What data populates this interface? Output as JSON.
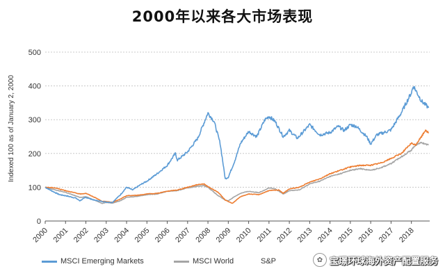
{
  "chart_data": {
    "type": "line",
    "title": "2000年以来各大市场表现",
    "ylabel": "Indexed 100 as of January 2, 2000",
    "ylim": [
      0,
      500
    ],
    "yticks": [
      0,
      100,
      200,
      300,
      400,
      500
    ],
    "xlim": [
      2000,
      2018.9
    ],
    "xticks": [
      "2000",
      "2001",
      "2002",
      "2003",
      "2004",
      "2005",
      "2006",
      "2007",
      "2008",
      "2009",
      "2010",
      "2011",
      "2012",
      "2013",
      "2014",
      "2015",
      "2016",
      "2017",
      "2018"
    ],
    "grid": "horizontal dashed",
    "legend": "bottom",
    "series": [
      {
        "name": "MSCI Emerging Markets",
        "color": "#5b9bd5",
        "x": [
          2000.0,
          2000.3,
          2000.7,
          2001.0,
          2001.5,
          2001.7,
          2002.0,
          2002.4,
          2002.8,
          2003.0,
          2003.3,
          2003.7,
          2004.0,
          2004.3,
          2004.7,
          2005.0,
          2005.5,
          2006.0,
          2006.4,
          2006.5,
          2007.0,
          2007.5,
          2007.8,
          2008.0,
          2008.3,
          2008.6,
          2008.85,
          2009.0,
          2009.3,
          2009.6,
          2010.0,
          2010.4,
          2010.8,
          2011.0,
          2011.3,
          2011.7,
          2012.0,
          2012.4,
          2012.7,
          2013.0,
          2013.5,
          2014.0,
          2014.4,
          2014.7,
          2015.0,
          2015.3,
          2015.8,
          2016.0,
          2016.3,
          2016.8,
          2017.0,
          2017.5,
          2018.0,
          2018.1,
          2018.5,
          2018.85
        ],
        "values": [
          100,
          90,
          78,
          75,
          68,
          60,
          70,
          62,
          58,
          56,
          55,
          78,
          100,
          92,
          108,
          118,
          140,
          165,
          200,
          180,
          205,
          245,
          290,
          320,
          295,
          230,
          125,
          130,
          175,
          230,
          265,
          250,
          300,
          310,
          295,
          250,
          268,
          245,
          265,
          285,
          255,
          262,
          280,
          268,
          285,
          280,
          250,
          228,
          255,
          265,
          270,
          320,
          380,
          400,
          355,
          335
        ]
      },
      {
        "name": "MSCI World",
        "color": "#a5a5a5",
        "x": [
          2000.0,
          2000.5,
          2001.0,
          2001.7,
          2002.0,
          2002.5,
          2002.8,
          2003.0,
          2003.3,
          2003.7,
          2004.0,
          2004.5,
          2005.0,
          2005.5,
          2006.0,
          2006.5,
          2007.0,
          2007.5,
          2007.8,
          2008.0,
          2008.5,
          2008.85,
          2009.0,
          2009.3,
          2009.6,
          2010.0,
          2010.5,
          2011.0,
          2011.3,
          2011.7,
          2012.0,
          2012.5,
          2013.0,
          2013.5,
          2014.0,
          2014.5,
          2015.0,
          2015.5,
          2016.0,
          2016.5,
          2017.0,
          2017.5,
          2018.0,
          2018.2,
          2018.5,
          2018.85
        ],
        "values": [
          100,
          92,
          85,
          70,
          72,
          60,
          52,
          55,
          53,
          60,
          70,
          73,
          78,
          80,
          88,
          90,
          98,
          103,
          105,
          100,
          75,
          62,
          60,
          72,
          82,
          88,
          84,
          98,
          95,
          80,
          90,
          92,
          110,
          118,
          132,
          140,
          150,
          155,
          150,
          158,
          170,
          190,
          210,
          225,
          232,
          225
        ]
      },
      {
        "name": "S&P 500",
        "color": "#ed7d31",
        "x": [
          2000.0,
          2000.5,
          2001.0,
          2001.7,
          2002.0,
          2002.5,
          2002.8,
          2003.0,
          2003.3,
          2003.7,
          2004.0,
          2004.5,
          2005.0,
          2005.5,
          2006.0,
          2006.5,
          2007.0,
          2007.5,
          2007.8,
          2008.0,
          2008.5,
          2008.85,
          2009.0,
          2009.2,
          2009.6,
          2010.0,
          2010.5,
          2011.0,
          2011.5,
          2011.7,
          2012.0,
          2012.5,
          2013.0,
          2013.5,
          2014.0,
          2014.5,
          2015.0,
          2015.5,
          2016.0,
          2016.5,
          2017.0,
          2017.5,
          2018.0,
          2018.2,
          2018.5,
          2018.7,
          2018.85
        ],
        "values": [
          100,
          98,
          90,
          80,
          82,
          68,
          58,
          58,
          55,
          65,
          75,
          76,
          80,
          82,
          88,
          92,
          100,
          108,
          110,
          102,
          85,
          62,
          58,
          52,
          72,
          80,
          78,
          90,
          92,
          82,
          95,
          100,
          115,
          125,
          140,
          150,
          160,
          165,
          165,
          172,
          185,
          200,
          230,
          225,
          250,
          270,
          260
        ]
      }
    ]
  },
  "watermark": {
    "text": "宝璟环球海外资产配置服务"
  }
}
